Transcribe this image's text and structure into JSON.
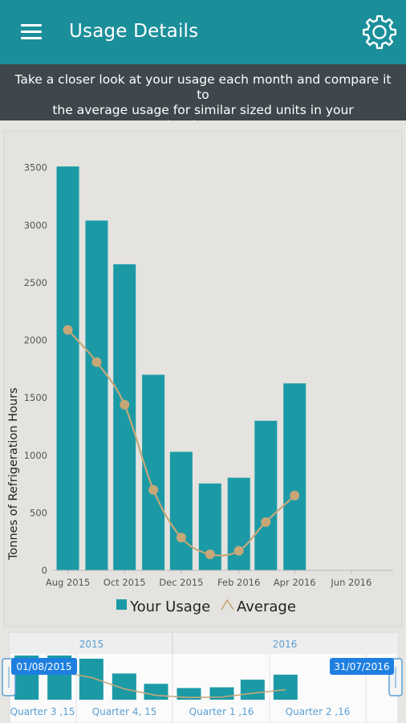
{
  "header": {
    "title": "Usage Details",
    "menu_icon": "hamburger-menu-icon",
    "settings_icon": "gear-icon",
    "bar_color": "#1b8f99"
  },
  "info_banner": {
    "line1": "Take a closer look at your usage each month and compare it to",
    "line2": "the average usage for similar sized units in your development"
  },
  "chart_data": {
    "type": "bar",
    "ylabel": "Tonnes of Refrigeration Hours",
    "ylim": [
      0,
      3700
    ],
    "yticks": [
      0,
      500,
      1000,
      1500,
      2000,
      2500,
      3000,
      3500
    ],
    "xlim": [
      "2015-07-16",
      "2016-07-16"
    ],
    "x_tick_labels": [
      "Aug 2015",
      "Oct 2015",
      "Dec 2015",
      "Feb 2016",
      "Apr 2016",
      "Jun 2016"
    ],
    "x_tick_dates": [
      "2015-08-01",
      "2015-10-01",
      "2015-12-01",
      "2016-02-01",
      "2016-04-01",
      "2016-06-01"
    ],
    "categories": [
      "2015-08-01",
      "2015-09-01",
      "2015-10-01",
      "2015-11-01",
      "2015-12-01",
      "2016-01-01",
      "2016-02-01",
      "2016-03-01",
      "2016-04-01"
    ],
    "series": [
      {
        "name": "Your Usage",
        "type": "bar",
        "color": "#1b9aa6",
        "values": [
          3510,
          3040,
          2660,
          1700,
          1030,
          755,
          805,
          1300,
          1625
        ]
      },
      {
        "name": "Average",
        "type": "line",
        "color": "#c7a778",
        "values": [
          2090,
          1810,
          1440,
          700,
          285,
          140,
          170,
          420,
          650
        ]
      }
    ],
    "legend": {
      "position": "bottom"
    },
    "grid": false
  },
  "navigator": {
    "years": [
      "2015",
      "2016"
    ],
    "start_label": "01/08/2015",
    "end_label": "31/07/2016",
    "quarters": [
      "Quarter 3 ,15",
      "Quarter 4, 15",
      "Quarter 1 ,16",
      "Quarter 2 ,16"
    ]
  }
}
